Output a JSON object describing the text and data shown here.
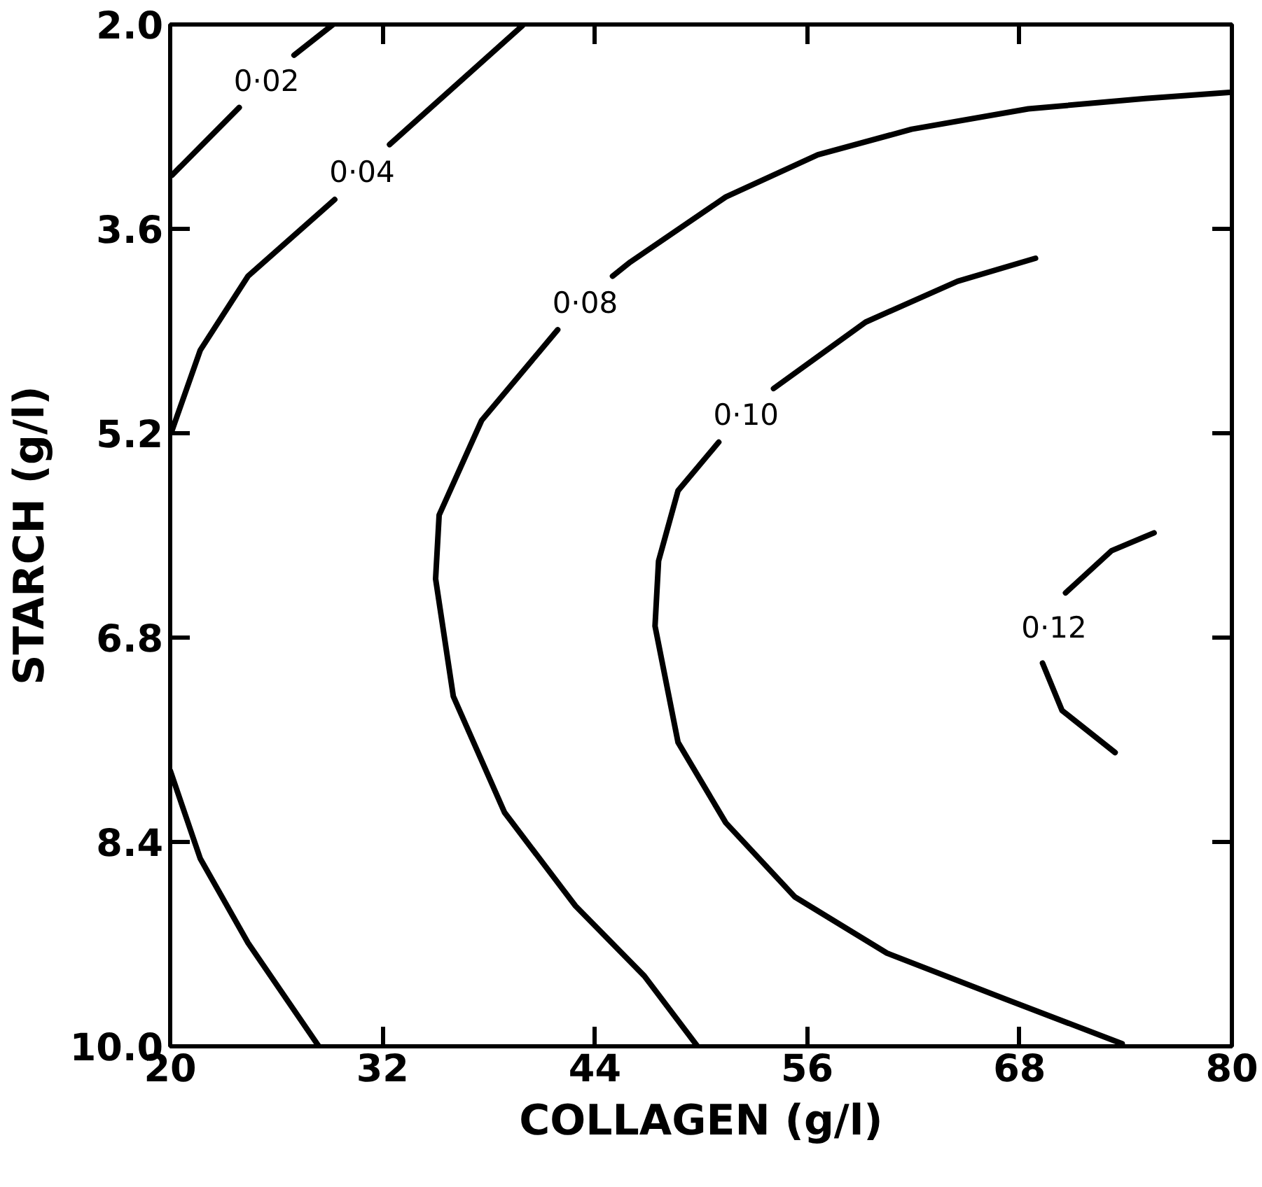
{
  "chart_data": {
    "type": "line",
    "xlabel": "COLLAGEN (g/l)",
    "ylabel": "STARCH (g/l)",
    "xlim": [
      20,
      80
    ],
    "ylim": [
      10.0,
      2.0
    ],
    "xticks": [
      20,
      32,
      44,
      56,
      68,
      80
    ],
    "yticks": [
      {
        "value": 2.0,
        "label": "2.0"
      },
      {
        "value": 3.6,
        "label": "3.6"
      },
      {
        "value": 5.2,
        "label": "5.2"
      },
      {
        "value": 6.8,
        "label": "6.8"
      },
      {
        "value": 8.4,
        "label": "8.4"
      },
      {
        "value": 10.0,
        "label": "10.0"
      }
    ],
    "grid": false,
    "marker": "none",
    "line_style": "solid",
    "series": [
      {
        "name": "0·02",
        "color": "#000000",
        "x": [
          20.1,
          23.9,
          25.4,
          27.0,
          29.2
        ],
        "values": [
          3.18,
          2.65,
          null,
          2.24,
          2.0
        ]
      },
      {
        "name": "0·04",
        "color": "#000000",
        "x": [
          20.1,
          21.7,
          24.4,
          29.3,
          30.8,
          32.4,
          39.9
        ],
        "values": [
          5.18,
          4.55,
          3.97,
          3.37,
          null,
          2.94,
          2.01
        ]
      },
      {
        "name": "0·08",
        "color": "#000000",
        "x": [
          80.0,
          75.1,
          68.5,
          61.9,
          56.6,
          51.4,
          46.0,
          45.0,
          43.4,
          41.9,
          37.6,
          35.2,
          35.0,
          36.0,
          38.9,
          42.9,
          46.8,
          49.8
        ],
        "values": [
          2.53,
          2.58,
          2.66,
          2.82,
          3.02,
          3.35,
          3.86,
          3.97,
          null,
          4.39,
          5.1,
          5.84,
          6.34,
          7.26,
          8.17,
          8.9,
          9.45,
          10.0
        ]
      },
      {
        "name": "0·10",
        "color": "#000000",
        "x": [
          68.9,
          64.5,
          59.3,
          54.1,
          52.5,
          51.0,
          48.7,
          47.6,
          47.4,
          48.7,
          51.4,
          55.3,
          60.5,
          67.2,
          73.8
        ],
        "values": [
          3.83,
          4.01,
          4.33,
          4.85,
          null,
          5.27,
          5.65,
          6.2,
          6.71,
          7.62,
          8.25,
          8.83,
          9.27,
          9.63,
          9.98
        ]
      },
      {
        "name": "0·12",
        "color": "#000000",
        "x": [
          75.6,
          73.2,
          70.6,
          69.9,
          69.3,
          70.4,
          73.4
        ],
        "values": [
          5.98,
          6.12,
          6.45,
          null,
          7.0,
          7.37,
          7.7
        ]
      },
      {
        "color": "#000000",
        "x": [
          20.0,
          21.7,
          24.4,
          28.4
        ],
        "values": [
          7.84,
          8.53,
          9.19,
          10.0
        ]
      }
    ]
  }
}
